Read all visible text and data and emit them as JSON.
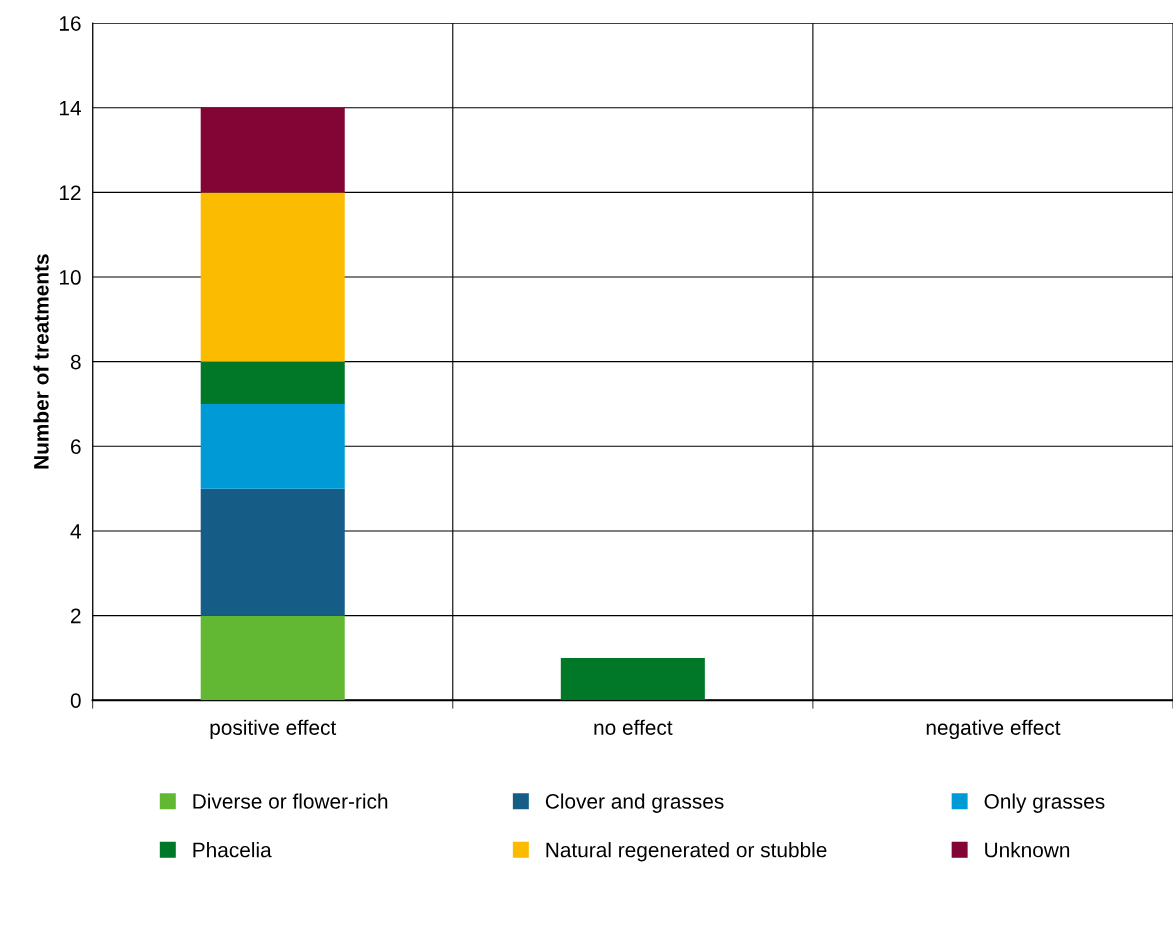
{
  "chart_data": {
    "type": "bar",
    "ylabel": "Number of treatments",
    "stacked": true,
    "categories": [
      "positive effect",
      "no effect",
      "negative effect"
    ],
    "series": [
      {
        "name": "Diverse or flower-rich",
        "color": "#62b832",
        "values": [
          2,
          0,
          0
        ]
      },
      {
        "name": "Clover and grasses",
        "color": "#155d87",
        "values": [
          3,
          0,
          0
        ]
      },
      {
        "name": "Only grasses",
        "color": "#009bd6",
        "values": [
          2,
          0,
          0
        ]
      },
      {
        "name": "Phacelia",
        "color": "#007828",
        "values": [
          1,
          1,
          0
        ]
      },
      {
        "name": "Natural regenerated or stubble",
        "color": "#fbbb00",
        "values": [
          4,
          0,
          0
        ]
      },
      {
        "name": "Unknown",
        "color": "#830536",
        "values": [
          2,
          0,
          0
        ]
      }
    ],
    "ylim": [
      0,
      16
    ],
    "yticks": [
      0,
      2,
      4,
      6,
      8,
      10,
      12,
      14,
      16
    ],
    "grid": true,
    "legend": "bottom"
  }
}
